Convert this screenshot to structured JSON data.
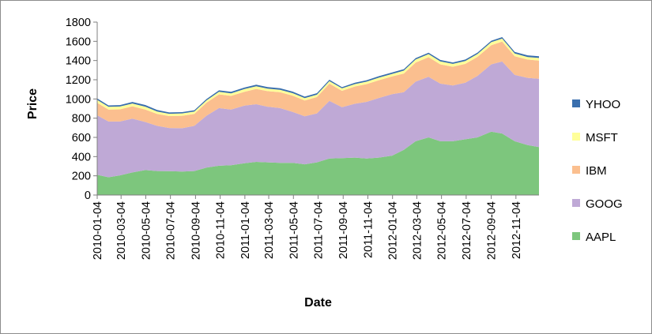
{
  "chart_data": {
    "type": "area",
    "stacked": true,
    "title": "",
    "xlabel": "Date",
    "ylabel": "Price",
    "ylim": [
      0,
      1800
    ],
    "yticks": [
      0,
      200,
      400,
      600,
      800,
      1000,
      1200,
      1400,
      1600,
      1800
    ],
    "xlim": [
      "2010-01-04",
      "2012-12-31"
    ],
    "xticks": [
      "2010-01-04",
      "2010-03-04",
      "2010-05-04",
      "2010-07-04",
      "2010-09-04",
      "2010-11-04",
      "2011-01-04",
      "2011-03-04",
      "2011-05-04",
      "2011-07-04",
      "2011-09-04",
      "2011-11-04",
      "2012-01-04",
      "2012-03-04",
      "2012-05-04",
      "2012-07-04",
      "2012-09-04",
      "2012-11-04"
    ],
    "grid": false,
    "legend": "right",
    "x": [
      "2010-01-04",
      "2010-02-01",
      "2010-03-01",
      "2010-04-01",
      "2010-05-03",
      "2010-06-01",
      "2010-07-01",
      "2010-08-02",
      "2010-09-01",
      "2010-10-01",
      "2010-11-01",
      "2010-12-01",
      "2011-01-03",
      "2011-02-01",
      "2011-03-01",
      "2011-04-01",
      "2011-05-02",
      "2011-06-01",
      "2011-07-01",
      "2011-08-01",
      "2011-09-01",
      "2011-10-03",
      "2011-11-01",
      "2011-12-01",
      "2012-01-03",
      "2012-02-01",
      "2012-03-01",
      "2012-04-02",
      "2012-05-01",
      "2012-06-01",
      "2012-07-02",
      "2012-08-01",
      "2012-09-04",
      "2012-10-01",
      "2012-11-01",
      "2012-12-03",
      "2012-12-31"
    ],
    "series": [
      {
        "name": "AAPL",
        "color": "#7dc67d",
        "values": [
          210,
          185,
          205,
          235,
          260,
          250,
          248,
          245,
          250,
          285,
          305,
          310,
          330,
          345,
          340,
          335,
          335,
          320,
          340,
          380,
          385,
          390,
          380,
          390,
          410,
          470,
          560,
          600,
          560,
          560,
          580,
          600,
          660,
          640,
          560,
          520,
          500
        ]
      },
      {
        "name": "GOOG",
        "color": "#bfa9d6",
        "values": [
          620,
          580,
          560,
          560,
          500,
          470,
          450,
          450,
          470,
          540,
          600,
          580,
          600,
          600,
          580,
          570,
          530,
          500,
          510,
          600,
          530,
          560,
          590,
          620,
          640,
          600,
          620,
          630,
          600,
          580,
          590,
          640,
          700,
          750,
          690,
          700,
          710
        ]
      },
      {
        "name": "IBM",
        "color": "#fbbf8f",
        "values": [
          130,
          125,
          127,
          129,
          130,
          125,
          124,
          130,
          125,
          136,
          143,
          142,
          145,
          160,
          162,
          165,
          170,
          165,
          170,
          180,
          170,
          180,
          185,
          185,
          185,
          195,
          198,
          205,
          200,
          196,
          195,
          198,
          200,
          208,
          195,
          190,
          190
        ]
      },
      {
        "name": "MSFT",
        "color": "#ffff99",
        "values": [
          30,
          28,
          29,
          29,
          30,
          25,
          24,
          25,
          24,
          24,
          26,
          27,
          28,
          28,
          26,
          26,
          25,
          24,
          25,
          26,
          25,
          25,
          25,
          26,
          26,
          30,
          32,
          32,
          31,
          29,
          30,
          30,
          31,
          30,
          28,
          27,
          27
        ]
      },
      {
        "name": "YHOO",
        "color": "#3a6fae",
        "values": [
          16,
          15,
          15,
          16,
          17,
          15,
          14,
          13,
          14,
          14,
          16,
          16,
          16,
          16,
          16,
          16,
          17,
          15,
          15,
          14,
          13,
          15,
          15,
          16,
          15,
          15,
          15,
          15,
          15,
          15,
          15,
          15,
          15,
          16,
          17,
          17,
          18
        ]
      }
    ]
  }
}
